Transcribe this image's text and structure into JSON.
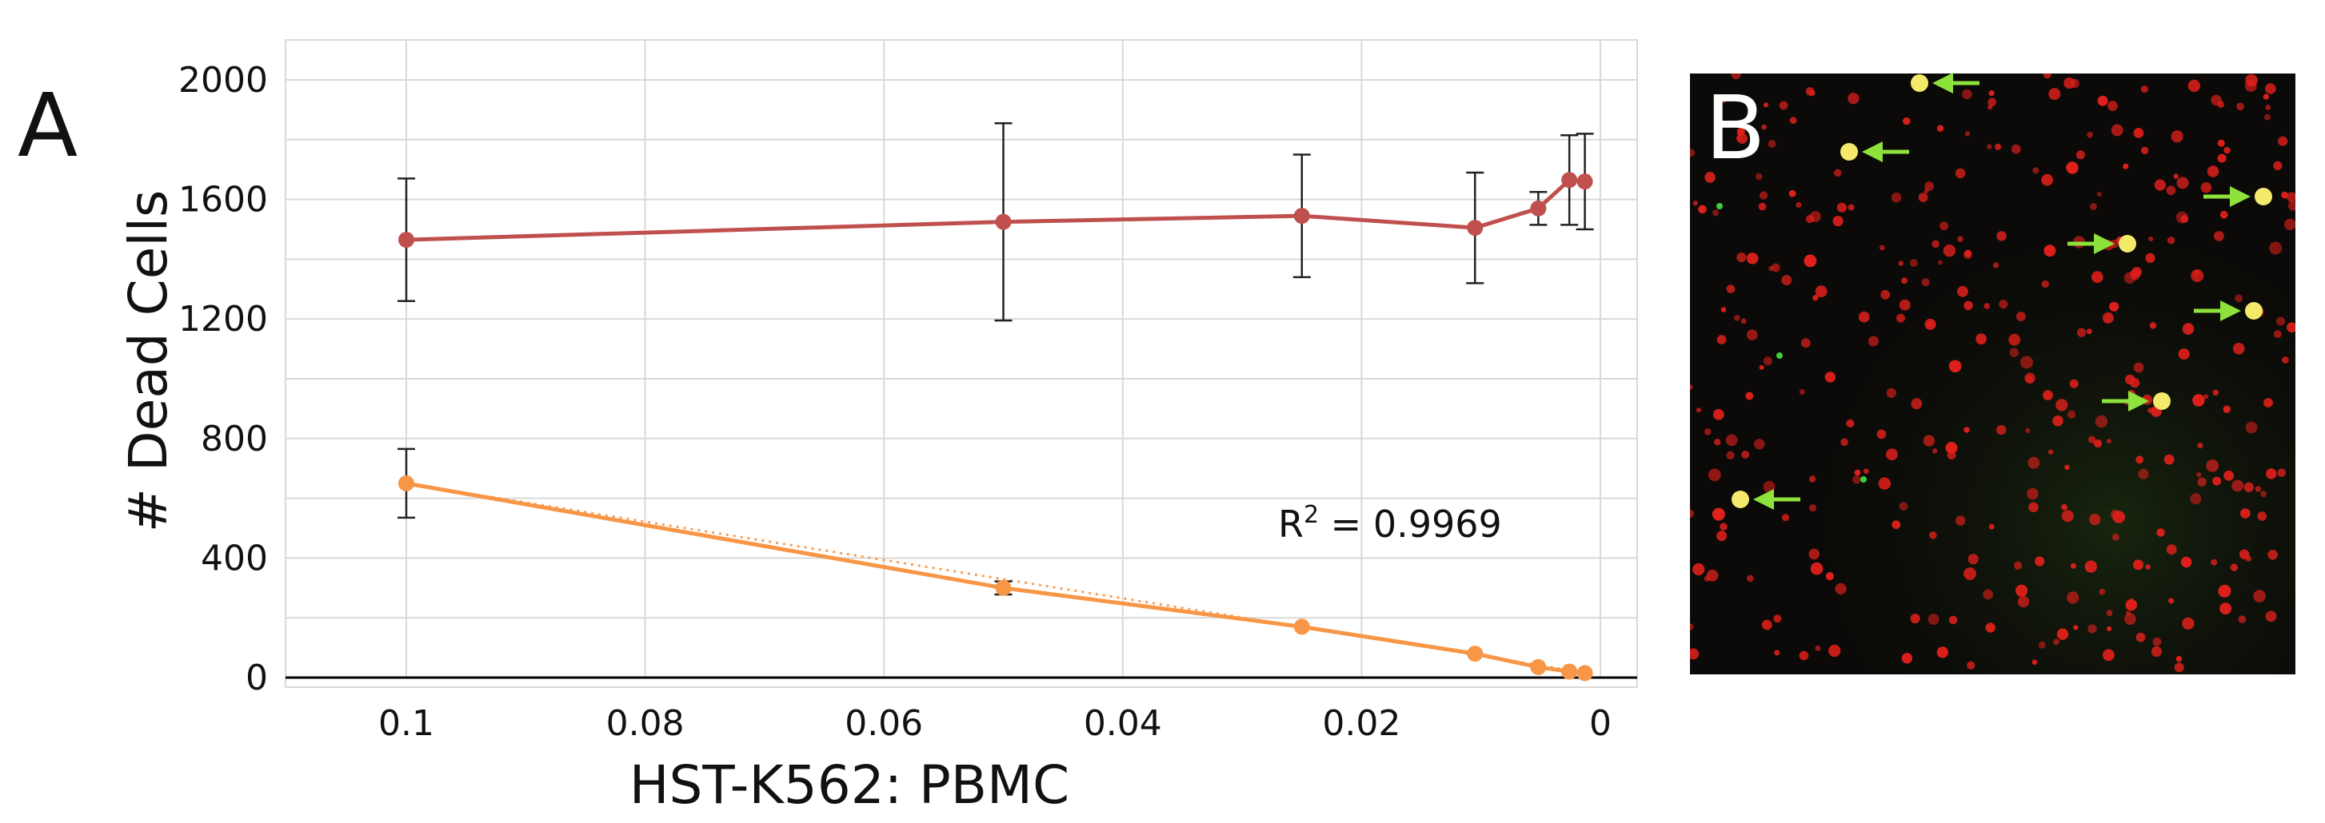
{
  "panels": {
    "a": {
      "letter": "A"
    },
    "b": {
      "letter": "B"
    }
  },
  "chart_data": {
    "type": "line",
    "xlabel": "HST-K562: PBMC",
    "ylabel": "# Dead Cells",
    "xlim": [
      0.11,
      0
    ],
    "ylim": [
      0,
      2000
    ],
    "x_ticks": [
      "0.1",
      "0.08",
      "0.06",
      "0.04",
      "0.02",
      "0"
    ],
    "x_tick_values": [
      0.1,
      0.08,
      0.06,
      0.04,
      0.02,
      0
    ],
    "y_ticks": [
      "0",
      "400",
      "800",
      "1200",
      "1600",
      "2000"
    ],
    "y_tick_values": [
      0,
      400,
      800,
      1200,
      1600,
      2000
    ],
    "grid": true,
    "series": [
      {
        "color": "#c0504d",
        "x": [
          0.1,
          0.05,
          0.025,
          0.0105,
          0.0052,
          0.0026,
          0.0013
        ],
        "y": [
          1465,
          1525,
          1545,
          1505,
          1570,
          1665,
          1660
        ],
        "err": [
          205,
          330,
          205,
          185,
          55,
          150,
          160
        ]
      },
      {
        "color": "#f79646",
        "x": [
          0.1,
          0.05,
          0.025,
          0.0105,
          0.0052,
          0.0026,
          0.0013
        ],
        "y": [
          650,
          300,
          170,
          80,
          35,
          20,
          15
        ],
        "err": [
          115,
          22,
          0,
          0,
          0,
          0,
          0
        ]
      }
    ],
    "trendline": {
      "series_index": 1,
      "x": [
        0.1,
        0.001
      ],
      "y": [
        650,
        15
      ]
    },
    "annotation": {
      "text_prefix": "R",
      "superscript": "2",
      "text_suffix": " = 0.9969"
    }
  },
  "image_panel": {
    "background": "#0b0a08",
    "cell_color": "#e0201b",
    "highlight_color": "#f4ea6a",
    "arrow_color": "#8ee23c"
  }
}
